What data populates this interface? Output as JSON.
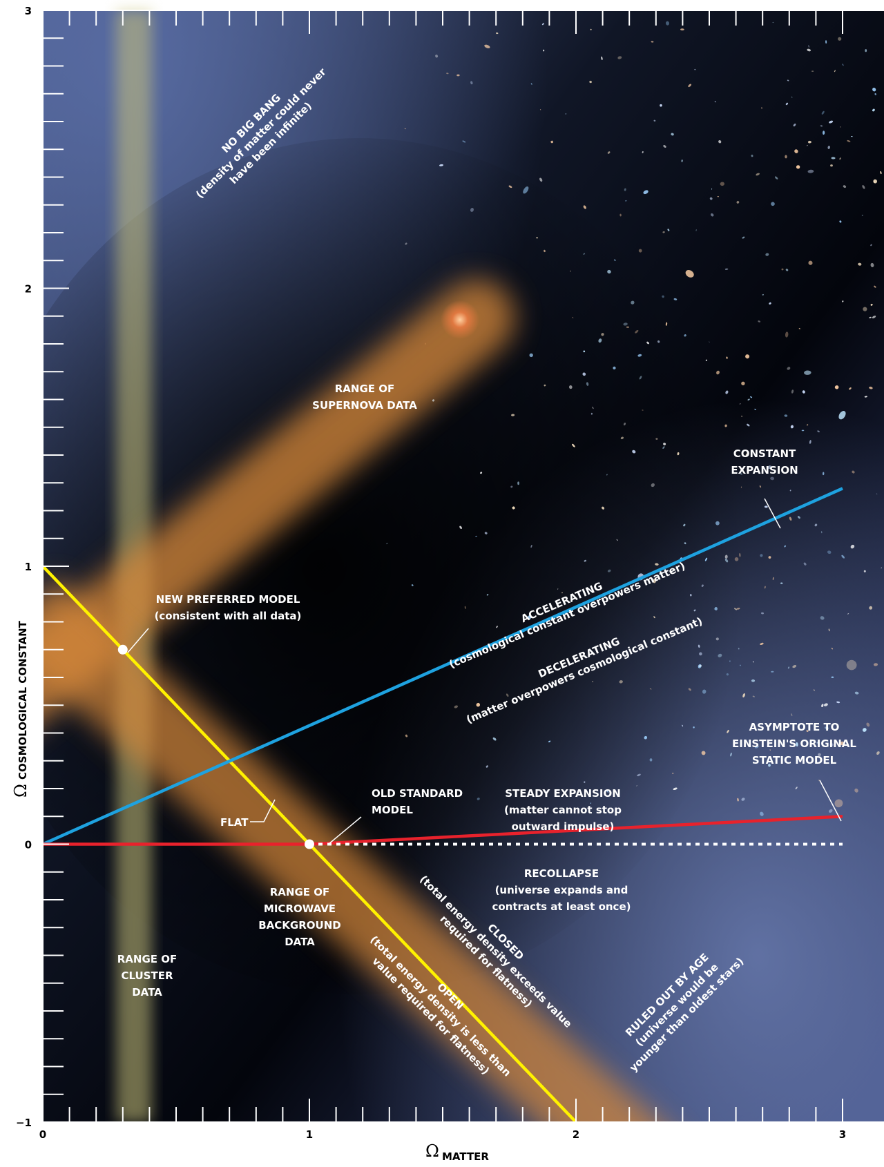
{
  "chart_data": {
    "type": "line",
    "xlabel_symbol": "Ω",
    "xlabel": "MATTER",
    "ylabel_symbol": "Ω",
    "ylabel": "COSMOLOGICAL CONSTANT",
    "xlim": [
      0,
      3
    ],
    "ylim": [
      -1,
      3
    ],
    "x_ticks": [
      "0",
      "1",
      "2",
      "3"
    ],
    "y_ticks": [
      "−1",
      "0",
      "1",
      "2",
      "3"
    ],
    "grid": false,
    "series": [
      {
        "color": "#fff200",
        "points": [
          [
            0,
            1
          ],
          [
            2,
            -1
          ]
        ]
      },
      {
        "color": "#1ea2e0",
        "points": [
          [
            0,
            0
          ],
          [
            3,
            1.28
          ]
        ]
      },
      {
        "color": "#e8222c",
        "points": [
          [
            0,
            0
          ],
          [
            1,
            0
          ],
          [
            3,
            0.1
          ]
        ]
      },
      {
        "color": "#ffffff",
        "dashed": true,
        "points": [
          [
            1,
            0
          ],
          [
            3,
            0
          ]
        ]
      }
    ],
    "points": [
      {
        "x": 0.3,
        "y": 0.7
      },
      {
        "x": 1,
        "y": 0
      }
    ],
    "regions": {
      "supernova": "RANGE OF SUPERNOVA DATA",
      "cluster": "RANGE OF CLUSTER DATA",
      "microwave": "RANGE OF MICROWAVE BACKGROUND DATA"
    }
  },
  "annotations": {
    "no_big_bang_title": "NO BIG BANG",
    "no_big_bang_l1": "(density of matter could never",
    "no_big_bang_l2": "have been infinite)",
    "supernova_l1": "RANGE OF",
    "supernova_l2": "SUPERNOVA DATA",
    "constant_expansion_l1": "CONSTANT",
    "constant_expansion_l2": "EXPANSION",
    "new_model_l1": "NEW PREFERRED MODEL",
    "new_model_l2": "(consistent with all data)",
    "accelerating_title": "ACCELERATING",
    "accelerating_sub": "(cosmological constant overpowers matter)",
    "decelerating_title": "DECELERATING",
    "decelerating_sub": "(matter overpowers cosmological constant)",
    "asymptote_l1": "ASYMPTOTE TO",
    "asymptote_l2": "EINSTEIN'S ORIGINAL",
    "asymptote_l3": "STATIC MODEL",
    "old_standard_l1": "OLD STANDARD",
    "old_standard_l2": "MODEL",
    "steady_l1": "STEADY EXPANSION",
    "steady_l2": "(matter cannot stop",
    "steady_l3": "outward impulse)",
    "flat": "FLAT",
    "recollapse_l1": "RECOLLAPSE",
    "recollapse_l2": "(universe expands and",
    "recollapse_l3": "contracts at least once)",
    "microwave_l1": "RANGE OF",
    "microwave_l2": "MICROWAVE",
    "microwave_l3": "BACKGROUND",
    "microwave_l4": "DATA",
    "cluster_l1": "RANGE OF",
    "cluster_l2": "CLUSTER",
    "cluster_l3": "DATA",
    "closed_title": "CLOSED",
    "closed_l1": "(total energy density exceeds value",
    "closed_l2": "required for flatness)",
    "open_title": "OPEN",
    "open_l1": "(total energy density is less than",
    "open_l2": "value required for flatness)",
    "ruled_out_title": "RULED OUT BY AGE",
    "ruled_out_l1": "(universe would be",
    "ruled_out_l2": "younger than oldest stars)"
  }
}
